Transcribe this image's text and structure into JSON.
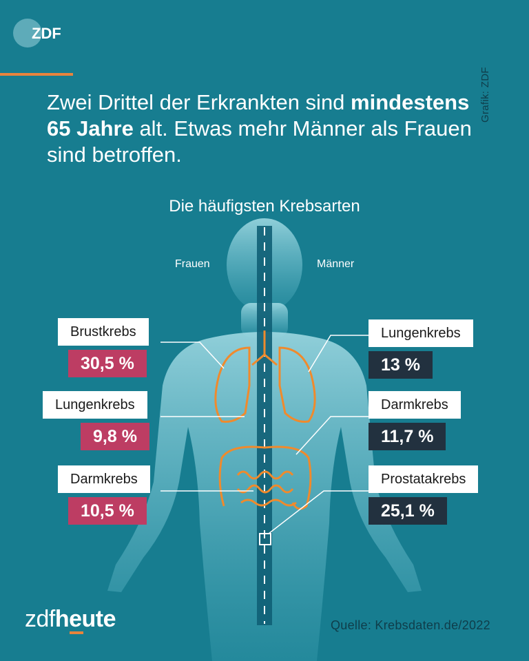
{
  "branding": {
    "top_logo": "ZDF",
    "bottom_logo_part1": "zdf",
    "bottom_logo_part2": "heute",
    "accent_color": "#e8843c"
  },
  "credit": "Grafik: ZDF",
  "headline": {
    "part1": "Zwei Drittel der Erkrankten sind ",
    "bold": "mindestens 65 Jahre",
    "part2": " alt. Etwas mehr Männer als Frauen sind betroffen."
  },
  "subtitle": "Die häufigsten Krebsarten",
  "women": {
    "header": "Frauen",
    "color": "#bd3d63",
    "items": [
      {
        "label": "Brustkrebs",
        "value": "30,5 %"
      },
      {
        "label": "Lungenkrebs",
        "value": "9,8 %"
      },
      {
        "label": "Darmkrebs",
        "value": "10,5 %"
      }
    ]
  },
  "men": {
    "header": "Männer",
    "color": "#22313f",
    "items": [
      {
        "label": "Lungenkrebs",
        "value": "13 %"
      },
      {
        "label": "Darmkrebs",
        "value": "11,7 %"
      },
      {
        "label": "Prostatakrebs",
        "value": "25,1 %"
      }
    ]
  },
  "source": "Quelle: Krebsdaten.de/2022",
  "icons": [
    "zdf-logo-icon",
    "human-body-illustration",
    "lungs-icon",
    "intestines-icon",
    "prostate-marker-icon"
  ]
}
